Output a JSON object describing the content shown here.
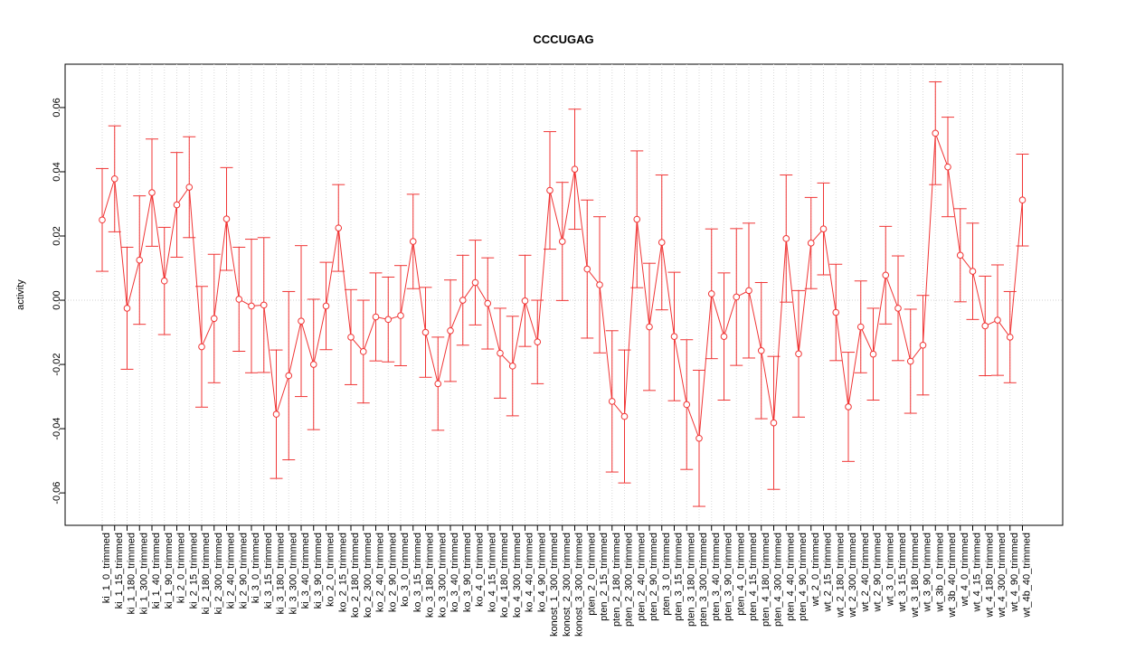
{
  "chart_data": {
    "type": "errorbar",
    "title": "CCCUGAG",
    "y_label": "activity",
    "categories": [
      "ki_1_0_trimmed",
      "ki_1_15_trimmed",
      "ki_1_180_trimmed",
      "ki_1_300_trimmed",
      "ki_1_40_trimmed",
      "ki_1_90_trimmed",
      "ki_2_0_trimmed",
      "ki_2_15_trimmed",
      "ki_2_180_trimmed",
      "ki_2_300_trimmed",
      "ki_2_40_trimmed",
      "ki_2_90_trimmed",
      "ki_3_0_trimmed",
      "ki_3_15_trimmed",
      "ki_3_180_trimmed",
      "ki_3_300_trimmed",
      "ki_3_40_trimmed",
      "ki_3_90_trimmed",
      "ko_2_0_trimmed",
      "ko_2_15_trimmed",
      "ko_2_180_trimmed",
      "ko_2_300_trimmed",
      "ko_2_40_trimmed",
      "ko_2_90_trimmed",
      "ko_3_0_trimmed",
      "ko_3_15_trimmed",
      "ko_3_180_trimmed",
      "ko_3_300_trimmed",
      "ko_3_40_trimmed",
      "ko_3_90_trimmed",
      "ko_4_0_trimmed",
      "ko_4_15_trimmed",
      "ko_4_180_trimmed",
      "ko_4_300_trimmed",
      "ko_4_40_trimmed",
      "ko_4_90_trimmed",
      "konost_1_300_trimmed",
      "konost_2_300_trimmed",
      "konost_3_300_trimmed",
      "pten_2_0_trimmed",
      "pten_2_15_trimmed",
      "pten_2_180_trimmed",
      "pten_2_300_trimmed",
      "pten_2_40_trimmed",
      "pten_2_90_trimmed",
      "pten_3_0_trimmed",
      "pten_3_15_trimmed",
      "pten_3_180_trimmed",
      "pten_3_300_trimmed",
      "pten_3_40_trimmed",
      "pten_3_90_trimmed",
      "pten_4_0_trimmed",
      "pten_4_15_trimmed",
      "pten_4_180_trimmed",
      "pten_4_300_trimmed",
      "pten_4_40_trimmed",
      "pten_4_90_trimmed",
      "wt_2_0_trimmed",
      "wt_2_15_trimmed",
      "wt_2_180_trimmed",
      "wt_2_300_trimmed",
      "wt_2_40_trimmed",
      "wt_2_90_trimmed",
      "wt_3_0_trimmed",
      "wt_3_15_trimmed",
      "wt_3_180_trimmed",
      "wt_3_90_trimmed",
      "wt_3b_0_trimmed",
      "wt_3b_40_trimmed",
      "wt_4_0_trimmed",
      "wt_4_15_trimmed",
      "wt_4_180_trimmed",
      "wt_4_300_trimmed",
      "wt_4_90_trimmed",
      "wt_4b_40_trimmed"
    ],
    "values": [
      0.025,
      0.0378,
      -0.0025,
      0.0125,
      0.0335,
      0.006,
      0.0297,
      0.0352,
      -0.0145,
      -0.0057,
      0.0253,
      0.0003,
      -0.0018,
      -0.0015,
      -0.0355,
      -0.0235,
      -0.0065,
      -0.02,
      -0.0018,
      0.0225,
      -0.0115,
      -0.016,
      -0.0052,
      -0.006,
      -0.0048,
      0.0183,
      -0.01,
      -0.026,
      -0.0095,
      0,
      0.0055,
      -0.001,
      -0.0165,
      -0.0205,
      -0.0002,
      -0.013,
      0.0342,
      0.0183,
      0.0408,
      0.0097,
      0.0048,
      -0.0315,
      -0.0362,
      0.0252,
      -0.0083,
      0.018,
      -0.0113,
      -0.0325,
      -0.043,
      0.002,
      -0.0113,
      0.001,
      0.003,
      -0.0157,
      -0.0382,
      0.0192,
      -0.0167,
      0.0178,
      0.0222,
      -0.0038,
      -0.0332,
      -0.0083,
      -0.0168,
      0.0078,
      -0.0025,
      -0.019,
      -0.014,
      0.052,
      0.0415,
      0.014,
      0.009,
      -0.008,
      -0.0062,
      -0.0115,
      0.0312
    ],
    "errors": [
      0.016,
      0.0165,
      0.019,
      0.02,
      0.0167,
      0.0167,
      0.0163,
      0.0157,
      0.0188,
      0.02,
      0.016,
      0.0162,
      0.0208,
      0.021,
      0.02,
      0.0262,
      0.0235,
      0.0203,
      0.0136,
      0.0135,
      0.0148,
      0.016,
      0.0137,
      0.0132,
      0.0156,
      0.0147,
      0.014,
      0.0145,
      0.0158,
      0.014,
      0.0132,
      0.0142,
      0.014,
      0.0155,
      0.0142,
      0.013,
      0.0183,
      0.0184,
      0.0187,
      0.0215,
      0.0212,
      0.022,
      0.0207,
      0.0213,
      0.0198,
      0.021,
      0.02,
      0.0202,
      0.0212,
      0.0202,
      0.0198,
      0.0213,
      0.021,
      0.0212,
      0.0207,
      0.0198,
      0.0197,
      0.0142,
      0.0143,
      0.015,
      0.017,
      0.0143,
      0.0143,
      0.0152,
      0.0163,
      0.0162,
      0.0155,
      0.016,
      0.0155,
      0.0145,
      0.015,
      0.0155,
      0.0172,
      0.0142,
      0.0143
    ],
    "color": "#f03535",
    "ylim": [
      -0.0701,
      0.0735
    ],
    "yticks": [
      {
        "value": -0.06,
        "label": "-0.06"
      },
      {
        "value": -0.04,
        "label": "-0.04"
      },
      {
        "value": -0.02,
        "label": "-0.02"
      },
      {
        "value": 0,
        "label": "0.00"
      },
      {
        "value": 0.02,
        "label": "0.02"
      },
      {
        "value": 0.04,
        "label": "0.04"
      },
      {
        "value": 0.06,
        "label": "0.06"
      }
    ],
    "zero_line": 0,
    "grid": true
  }
}
